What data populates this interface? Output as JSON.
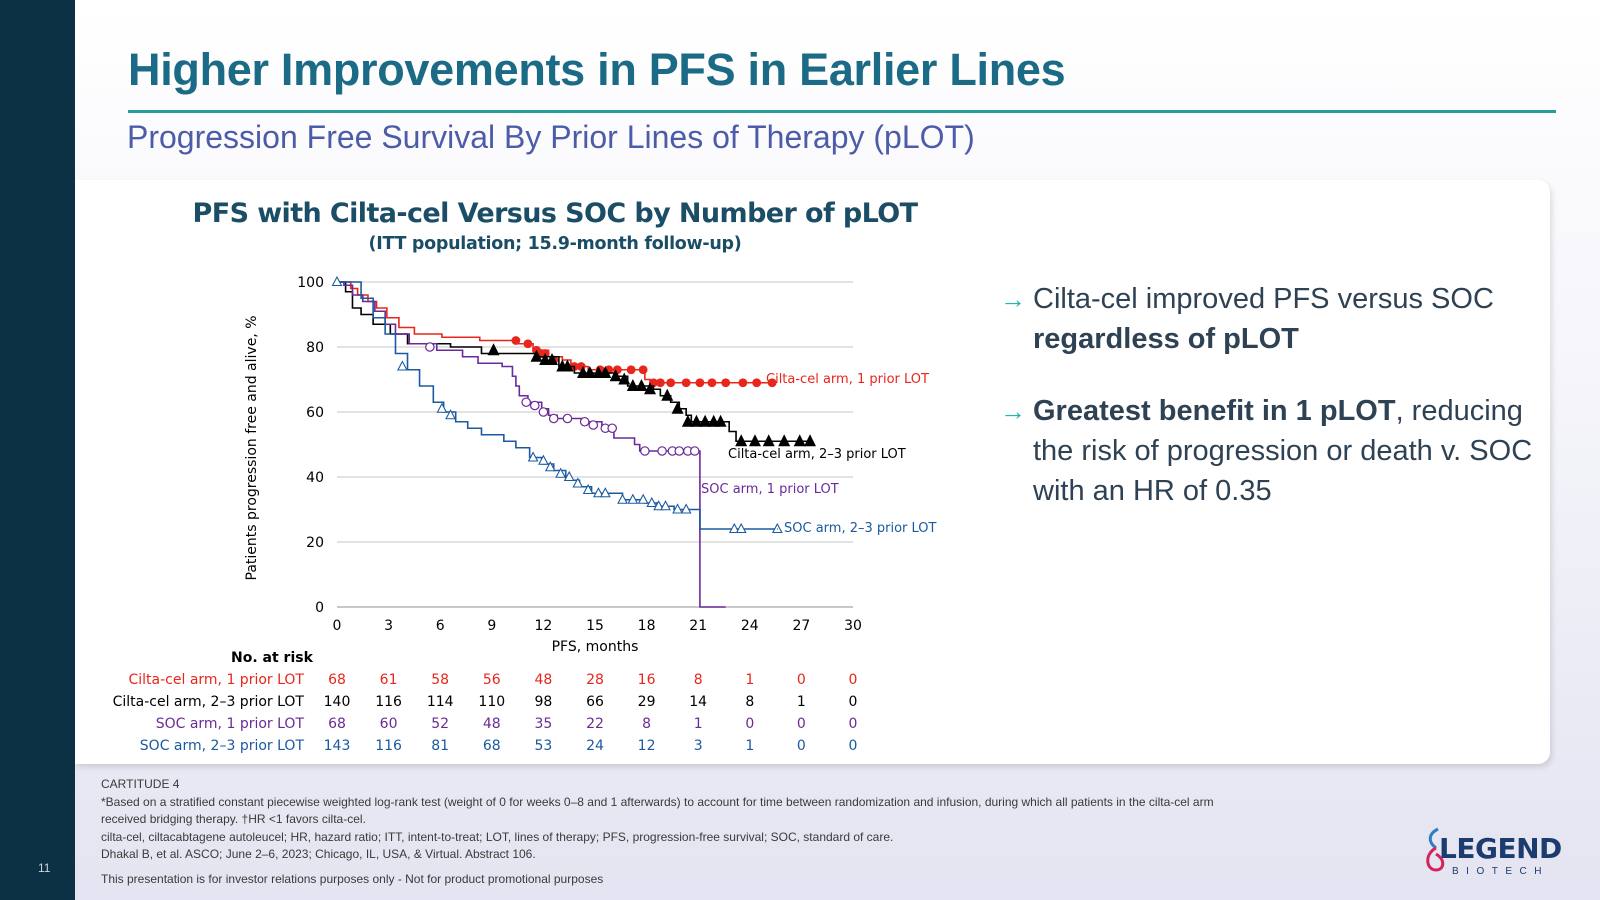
{
  "slide": {
    "title": "Higher Improvements in PFS in Earlier Lines",
    "subtitle": "Progression Free Survival By Prior Lines of Therapy (pLOT)",
    "page_number": "11"
  },
  "chart_data": {
    "type": "line",
    "title": "PFS with Cilta-cel Versus SOC by Number of pLOT",
    "subtitle": "(ITT population; 15.9-month follow-up)",
    "xlabel": "PFS, months",
    "ylabel": "Patients progression free and alive, %",
    "xlim": [
      0,
      30
    ],
    "ylim": [
      0,
      100
    ],
    "xticks": [
      0,
      3,
      6,
      9,
      12,
      15,
      18,
      21,
      24,
      27,
      30
    ],
    "yticks": [
      0,
      20,
      40,
      60,
      80,
      100
    ],
    "grid": "horizontal",
    "series": [
      {
        "name": "Cilta-cel arm, 1 prior LOT",
        "color": "#e8261c",
        "marker": "filled-circle",
        "steps": [
          [
            0,
            100
          ],
          [
            0.8,
            98
          ],
          [
            1.2,
            96
          ],
          [
            1.8,
            94
          ],
          [
            2.3,
            92
          ],
          [
            2.9,
            89
          ],
          [
            3.6,
            86
          ],
          [
            4.5,
            84
          ],
          [
            6.1,
            83
          ],
          [
            8.3,
            82
          ],
          [
            10.5,
            81
          ],
          [
            11.4,
            79
          ],
          [
            12.3,
            77
          ],
          [
            13.1,
            76
          ],
          [
            13.6,
            74
          ],
          [
            14.6,
            73
          ],
          [
            17.8,
            72
          ],
          [
            17.9,
            70
          ],
          [
            18.2,
            69
          ],
          [
            25.5,
            69
          ]
        ],
        "censors": [
          [
            10.4,
            82
          ],
          [
            11.1,
            81
          ],
          [
            11.6,
            79
          ],
          [
            11.9,
            78
          ],
          [
            12.1,
            78
          ],
          [
            12.6,
            76
          ],
          [
            13.8,
            74
          ],
          [
            14.2,
            74
          ],
          [
            15.3,
            73
          ],
          [
            15.8,
            73
          ],
          [
            16.3,
            73
          ],
          [
            17.1,
            73
          ],
          [
            17.8,
            73
          ],
          [
            18.4,
            69
          ],
          [
            18.8,
            69
          ],
          [
            19.4,
            69
          ],
          [
            20.3,
            69
          ],
          [
            21.1,
            69
          ],
          [
            21.8,
            69
          ],
          [
            22.6,
            69
          ],
          [
            23.6,
            69
          ],
          [
            24.4,
            69
          ],
          [
            25.3,
            69
          ]
        ],
        "label": "Cilta-cel arm, 1 prior LOT"
      },
      {
        "name": "Cilta-cel arm, 2–3 prior LOT",
        "color": "#000000",
        "marker": "filled-triangle",
        "steps": [
          [
            0,
            100
          ],
          [
            0.5,
            97
          ],
          [
            0.9,
            92
          ],
          [
            1.4,
            90
          ],
          [
            2.1,
            87
          ],
          [
            3.1,
            84
          ],
          [
            4.1,
            81
          ],
          [
            6.6,
            80
          ],
          [
            8.4,
            78
          ],
          [
            11.6,
            77
          ],
          [
            12.9,
            74
          ],
          [
            13.8,
            72
          ],
          [
            16.1,
            71
          ],
          [
            16.9,
            68
          ],
          [
            18.4,
            67
          ],
          [
            18.8,
            65
          ],
          [
            19.4,
            63
          ],
          [
            19.9,
            61
          ],
          [
            20.3,
            59
          ],
          [
            20.6,
            57
          ],
          [
            22.8,
            54
          ],
          [
            23.2,
            51
          ],
          [
            27.6,
            51
          ]
        ],
        "censors": [
          [
            9.1,
            79
          ],
          [
            11.6,
            77
          ],
          [
            12.1,
            76
          ],
          [
            12.5,
            76
          ],
          [
            13.1,
            74
          ],
          [
            13.4,
            74
          ],
          [
            14.3,
            72
          ],
          [
            14.7,
            72
          ],
          [
            15.2,
            72
          ],
          [
            15.6,
            72
          ],
          [
            16.2,
            71
          ],
          [
            16.7,
            70
          ],
          [
            17.2,
            68
          ],
          [
            17.7,
            68
          ],
          [
            18.2,
            67
          ],
          [
            19.2,
            65
          ],
          [
            19.8,
            61
          ],
          [
            20.4,
            57
          ],
          [
            20.9,
            57
          ],
          [
            21.4,
            57
          ],
          [
            21.9,
            57
          ],
          [
            22.3,
            57
          ],
          [
            23.5,
            51
          ],
          [
            24.3,
            51
          ],
          [
            25.1,
            51
          ],
          [
            26.0,
            51
          ],
          [
            26.9,
            51
          ],
          [
            27.5,
            51
          ]
        ],
        "label": "Cilta-cel arm, 2–3 prior LOT"
      },
      {
        "name": "SOC arm, 1 prior LOT",
        "color": "#6a2a98",
        "marker": "open-circle",
        "steps": [
          [
            0,
            100
          ],
          [
            0.4,
            99
          ],
          [
            0.9,
            96
          ],
          [
            1.5,
            94
          ],
          [
            2.2,
            91
          ],
          [
            2.8,
            87
          ],
          [
            3.4,
            84
          ],
          [
            4.2,
            81
          ],
          [
            5.8,
            79
          ],
          [
            7.3,
            77
          ],
          [
            8.2,
            75
          ],
          [
            9.6,
            74
          ],
          [
            10.2,
            71
          ],
          [
            10.4,
            68
          ],
          [
            10.6,
            65
          ],
          [
            11.1,
            63
          ],
          [
            11.9,
            61
          ],
          [
            12.3,
            59
          ],
          [
            12.8,
            58
          ],
          [
            14.2,
            57
          ],
          [
            15.4,
            55
          ],
          [
            16.1,
            52
          ],
          [
            17.3,
            50
          ],
          [
            17.6,
            48
          ],
          [
            20.9,
            48
          ],
          [
            21.1,
            0
          ],
          [
            22.6,
            0
          ]
        ],
        "censors": [
          [
            5.4,
            80
          ],
          [
            11.0,
            63
          ],
          [
            11.5,
            62
          ],
          [
            12.0,
            60
          ],
          [
            12.6,
            58
          ],
          [
            13.4,
            58
          ],
          [
            14.4,
            57
          ],
          [
            14.9,
            56
          ],
          [
            15.6,
            55
          ],
          [
            16.0,
            55
          ],
          [
            17.9,
            48
          ],
          [
            18.9,
            48
          ],
          [
            19.5,
            48
          ],
          [
            19.9,
            48
          ],
          [
            20.4,
            48
          ],
          [
            20.8,
            48
          ]
        ],
        "label": "SOC arm, 1 prior LOT"
      },
      {
        "name": "SOC arm, 2–3 prior LOT",
        "color": "#1b5aa0",
        "marker": "open-triangle",
        "steps": [
          [
            0,
            100
          ],
          [
            1.4,
            95
          ],
          [
            2.1,
            89
          ],
          [
            2.8,
            84
          ],
          [
            3.4,
            78
          ],
          [
            4.1,
            73
          ],
          [
            4.8,
            68
          ],
          [
            5.6,
            63
          ],
          [
            6.2,
            60
          ],
          [
            6.9,
            57
          ],
          [
            7.6,
            55
          ],
          [
            8.4,
            53
          ],
          [
            9.7,
            51
          ],
          [
            10.4,
            49
          ],
          [
            11.2,
            46
          ],
          [
            11.9,
            44
          ],
          [
            12.6,
            42
          ],
          [
            13.3,
            39
          ],
          [
            14.1,
            37
          ],
          [
            14.8,
            35
          ],
          [
            16.6,
            33
          ],
          [
            17.9,
            32
          ],
          [
            18.6,
            31
          ],
          [
            19.6,
            30
          ],
          [
            20.9,
            30
          ],
          [
            21.1,
            24
          ],
          [
            25.6,
            24
          ]
        ],
        "censors": [
          [
            0,
            100
          ],
          [
            3.8,
            74
          ],
          [
            6.1,
            61
          ],
          [
            6.6,
            59
          ],
          [
            11.4,
            46
          ],
          [
            12.0,
            45
          ],
          [
            12.4,
            43
          ],
          [
            13.0,
            41
          ],
          [
            13.5,
            40
          ],
          [
            14.0,
            38
          ],
          [
            14.6,
            36
          ],
          [
            15.2,
            35
          ],
          [
            15.6,
            35
          ],
          [
            16.6,
            33
          ],
          [
            17.2,
            33
          ],
          [
            17.8,
            33
          ],
          [
            18.3,
            32
          ],
          [
            18.7,
            31
          ],
          [
            19.1,
            31
          ],
          [
            19.8,
            30
          ],
          [
            20.3,
            30
          ],
          [
            23.1,
            24
          ],
          [
            23.5,
            24
          ],
          [
            25.6,
            24
          ]
        ],
        "label": "SOC arm, 2–3 prior LOT"
      }
    ],
    "risk_table": {
      "header": "No. at risk",
      "rows": [
        {
          "label": "Cilta-cel arm, 1 prior LOT",
          "color": "#e8261c",
          "values": [
            "68",
            "61",
            "58",
            "56",
            "48",
            "28",
            "16",
            "8",
            "1",
            "0",
            "0"
          ]
        },
        {
          "label": "Cilta-cel arm, 2–3 prior LOT",
          "color": "#000000",
          "values": [
            "140",
            "116",
            "114",
            "110",
            "98",
            "66",
            "29",
            "14",
            "8",
            "1",
            "0"
          ]
        },
        {
          "label": "SOC arm, 1 prior LOT",
          "color": "#6a2a98",
          "values": [
            "68",
            "60",
            "52",
            "48",
            "35",
            "22",
            "8",
            "1",
            "0",
            "0",
            "0"
          ]
        },
        {
          "label": "SOC arm, 2–3 prior LOT",
          "color": "#1b5aa0",
          "values": [
            "143",
            "116",
            "81",
            "68",
            "53",
            "24",
            "12",
            "3",
            "1",
            "0",
            "0"
          ]
        }
      ]
    }
  },
  "bullets": [
    {
      "pre": "Cilta-cel improved PFS versus SOC ",
      "bold": "regardless of pLOT",
      "post": ""
    },
    {
      "pre": "",
      "bold": "Greatest benefit in 1 pLOT",
      "post": ", reducing the risk of progression or death v. SOC with an HR of 0.35"
    }
  ],
  "footer": {
    "study": "CARTITUDE 4",
    "note1": "*Based on a stratified constant piecewise weighted log-rank test (weight of 0 for weeks 0–8 and 1 afterwards) to account for time between randomization and infusion, during which all patients in the cilta-cel arm",
    "note2": "received bridging therapy. †HR <1 favors cilta-cel.",
    "abbreviations": "cilta-cel, ciltacabtagene autoleucel; HR, hazard ratio; ITT, intent-to-treat; LOT, lines of therapy; PFS, progression-free survival; SOC, standard of care.",
    "reference": "Dhakal B, et al. ASCO; June 2–6, 2023; Chicago, IL, USA, & Virtual. Abstract 106.",
    "disclaimer": "This presentation is for investor relations purposes only - Not for product promotional purposes"
  },
  "logo": {
    "word": "LEGEND",
    "sub": "BIOTECH"
  }
}
